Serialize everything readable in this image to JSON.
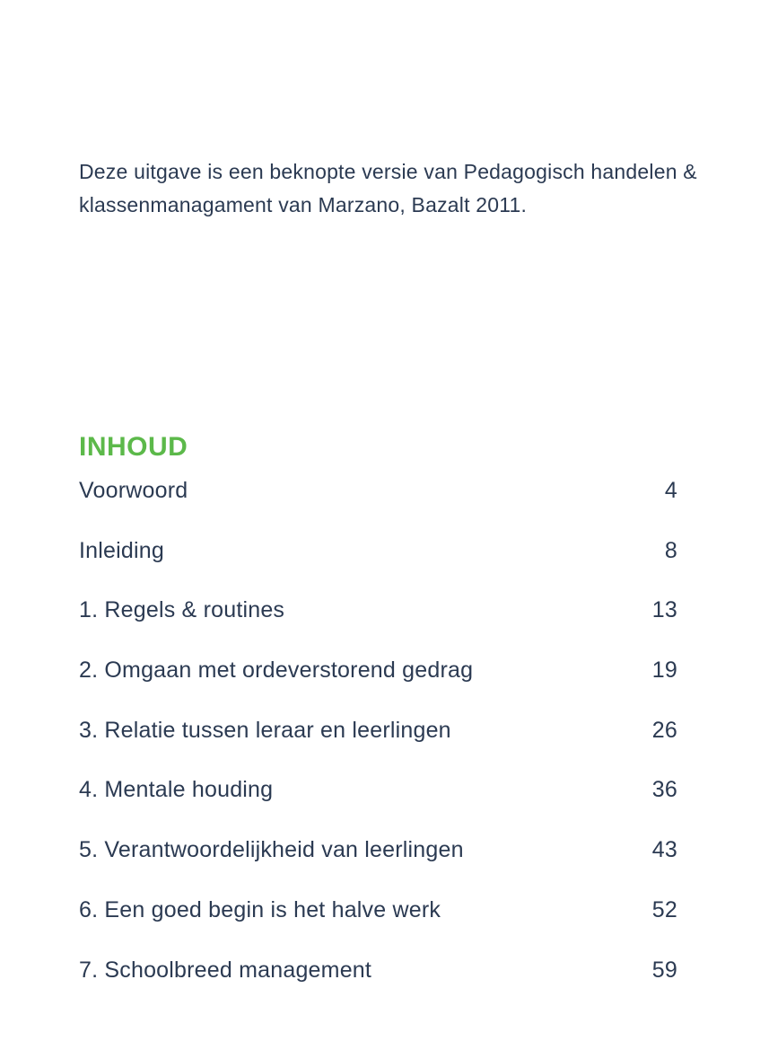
{
  "page": {
    "background": "#ffffff",
    "text_color": "#2b3a52",
    "accent_green": "#5cb94a"
  },
  "intro": {
    "text": "Deze uitgave is een beknopte versie van Pedagogisch handelen & klassenmanagament van Marzano, Bazalt 2011."
  },
  "toc": {
    "heading": "INHOUD",
    "entries": [
      {
        "title": "Voorwoord",
        "page": "4"
      },
      {
        "title": "Inleiding",
        "page": "8"
      },
      {
        "title": "1. Regels & routines",
        "page": "13"
      },
      {
        "title": "2. Omgaan met ordeverstorend gedrag",
        "page": "19"
      },
      {
        "title": "3. Relatie tussen leraar en leerlingen",
        "page": "26"
      },
      {
        "title": "4. Mentale houding",
        "page": "36"
      },
      {
        "title": "5. Verantwoordelijkheid van leerlingen",
        "page": "43"
      },
      {
        "title": "6. Een goed begin is het halve werk",
        "page": "52"
      },
      {
        "title": "7. Schoolbreed management",
        "page": "59"
      }
    ]
  }
}
